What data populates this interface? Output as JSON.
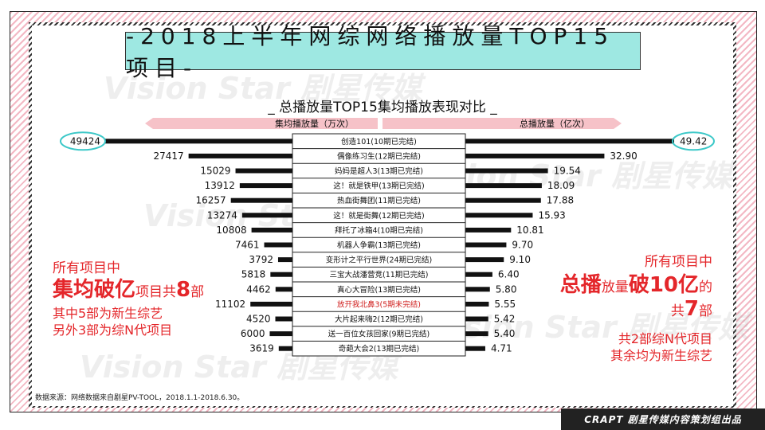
{
  "title": "-2018上半年网综网络播放量TOP15项目-",
  "chart_data": {
    "type": "bar",
    "title": "_ 总播放量TOP15集均播放表现对比 _",
    "left_series_label": "集均播放量（万次）",
    "right_series_label": "总播放量（亿次）",
    "categories": [
      "创造101(10期已完结)",
      "偶像练习生(12期已完结)",
      "妈妈是超人3(13期已完结)",
      "这！就是铁甲(13期已完结)",
      "热血街舞团(11期已完结)",
      "这！就是街舞(12期已完结)",
      "拜托了冰箱4(10期已完结)",
      "机器人争霸(13期已完结)",
      "变形计之平行世界(24期已完结)",
      "三宝大战潘营竞(11期已完结)",
      "真心大冒险(13期已完结)",
      "放开我北鼻3(5期未完结)",
      "大片起来嗨2(12期已完结)",
      "送一百位女孩回家(9期已完结)",
      "奇葩大会2(13期已完结)"
    ],
    "category_colors": [
      "#111",
      "#111",
      "#111",
      "#111",
      "#111",
      "#111",
      "#111",
      "#111",
      "#111",
      "#111",
      "#111",
      "#d0201f",
      "#111",
      "#111",
      "#111"
    ],
    "series": [
      {
        "name": "集均播放量（万次）",
        "values": [
          49424,
          27417,
          15029,
          13912,
          16257,
          13274,
          10808,
          7461,
          3792,
          5818,
          4462,
          11102,
          4520,
          6000,
          3619
        ]
      },
      {
        "name": "总播放量（亿次）",
        "values": [
          49.42,
          32.9,
          19.54,
          18.09,
          17.88,
          15.93,
          10.81,
          9.7,
          9.1,
          6.4,
          5.8,
          5.55,
          5.42,
          5.4,
          4.71
        ]
      }
    ],
    "right_labels": [
      "49.42",
      "32.90",
      "19.54",
      "18.09",
      "17.88",
      "15.93",
      "10.81",
      "9.70",
      "9.10",
      "6.40",
      "5.80",
      "5.55",
      "5.42",
      "5.40",
      "4.71"
    ],
    "left_max": 49424,
    "right_max": 49.42,
    "highlighted_labels": [
      "49424",
      "49.42"
    ],
    "bar_color": "#111111",
    "highlight_color": "#3cc8c8"
  },
  "annotations": {
    "left": {
      "line1": "所有项目中",
      "line2_big": "集均破亿",
      "line2_small": "项目共",
      "line2_num": "8",
      "line2_tail": "部",
      "line3": "其中5部为新生综艺",
      "line4": "另外3部为综N代项目"
    },
    "right": {
      "line1": "所有项目中",
      "line2_big1": "总播",
      "line2_small": "放量",
      "line2_big2": "破10亿",
      "line2_tail": "的",
      "line3_pre": "共",
      "line3_num": "7",
      "line3_tail": "部",
      "line4": "共2部综N代项目",
      "line5": "其余均为新生综艺"
    }
  },
  "source": "数据来源：网络数据来自剧星PV-TOOL，2018.1.1-2018.6.30。",
  "brand": "CRAPT 剧星传媒内容策划组出品",
  "watermark": "Vision Star 剧星传媒",
  "colors": {
    "accent": "#e4262a",
    "title_bg": "#9ee8e2",
    "legend_bg": "#f6c2c8"
  }
}
